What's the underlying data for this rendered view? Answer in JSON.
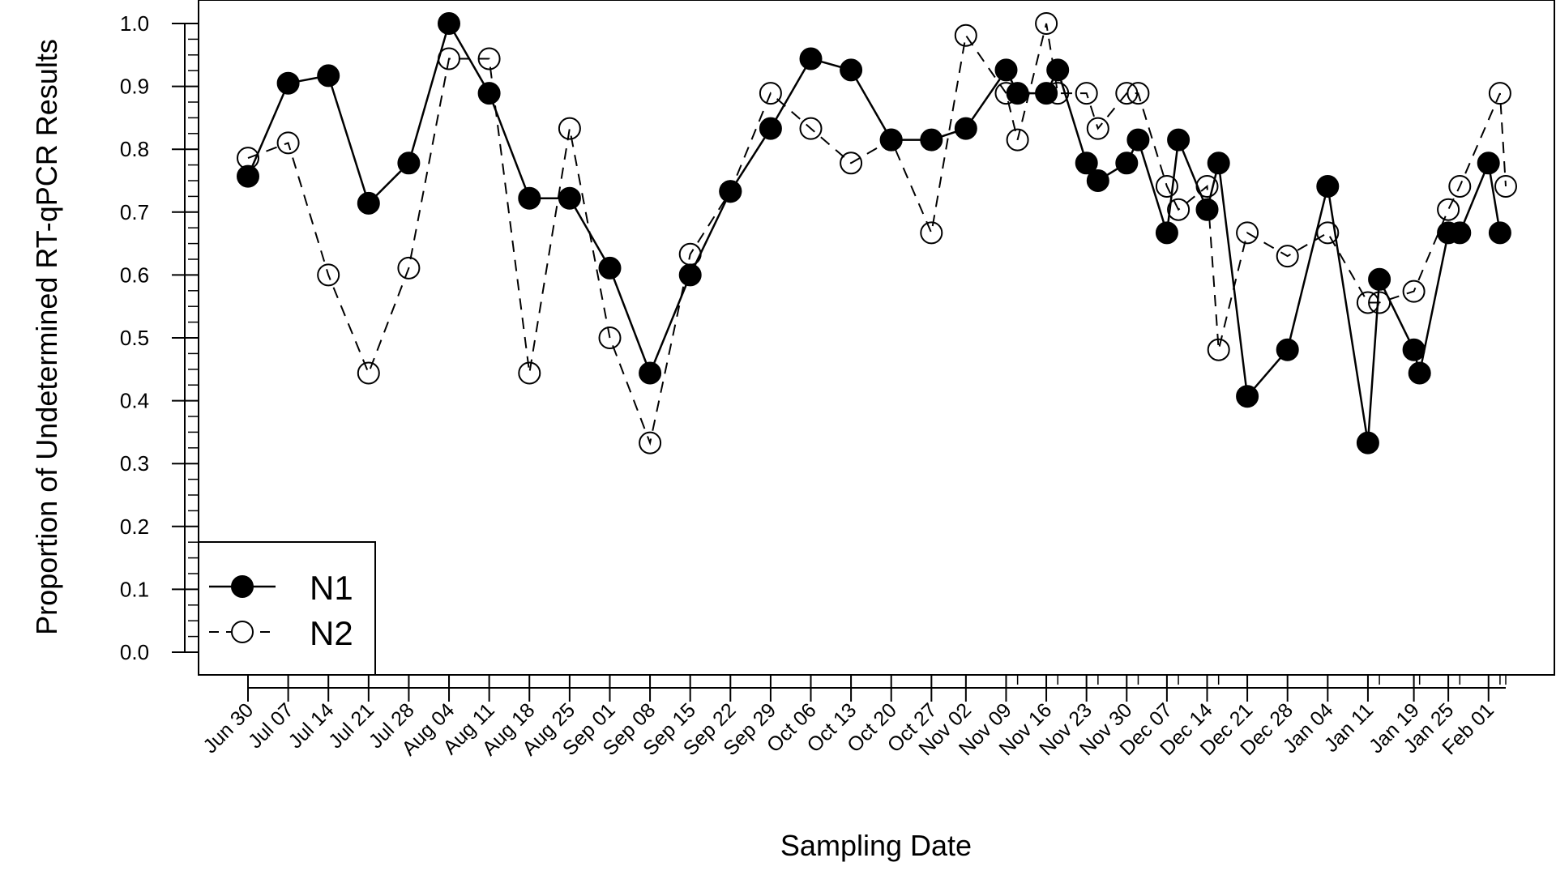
{
  "chart_data": {
    "type": "line",
    "title": "",
    "xlabel": "Sampling Date",
    "ylabel": "Proportion of Undetermined RT-qPCR Results",
    "ylim": [
      0.0,
      1.0
    ],
    "y_ticks": [
      "0.0",
      "0.1",
      "0.2",
      "0.3",
      "0.4",
      "0.5",
      "0.6",
      "0.7",
      "0.8",
      "0.9",
      "1.0"
    ],
    "x_ticks": [
      "Jun 30",
      "Jul 07",
      "Jul 14",
      "Jul 21",
      "Jul 28",
      "Aug 04",
      "Aug 11",
      "Aug 18",
      "Aug 25",
      "Sep 01",
      "Sep 08",
      "Sep 15",
      "Sep 22",
      "Sep 29",
      "Oct 06",
      "Oct 13",
      "Oct 20",
      "Oct 27",
      "Nov 02",
      "Nov 09",
      "Nov 16",
      "Nov 23",
      "Nov 30",
      "Dec 07",
      "Dec 14",
      "Dec 21",
      "Dec 28",
      "Jan 04",
      "Jan 11",
      "Jan 19",
      "Jan 25",
      "Feb 01"
    ],
    "x_axis_type": "date",
    "grid": false,
    "legend_position": "bottom-left",
    "series": [
      {
        "name": "N1",
        "line_style": "solid",
        "marker": "filled-circle",
        "points": [
          [
            "2020-06-30",
            0.757
          ],
          [
            "2020-07-07",
            0.905
          ],
          [
            "2020-07-14",
            0.917
          ],
          [
            "2020-07-21",
            0.714
          ],
          [
            "2020-07-28",
            0.778
          ],
          [
            "2020-08-04",
            1.0
          ],
          [
            "2020-08-11",
            0.889
          ],
          [
            "2020-08-18",
            0.722
          ],
          [
            "2020-08-25",
            0.722
          ],
          [
            "2020-09-01",
            0.611
          ],
          [
            "2020-09-08",
            0.444
          ],
          [
            "2020-09-15",
            0.6
          ],
          [
            "2020-09-22",
            0.733
          ],
          [
            "2020-09-29",
            0.833
          ],
          [
            "2020-10-06",
            0.944
          ],
          [
            "2020-10-13",
            0.926
          ],
          [
            "2020-10-20",
            0.815
          ],
          [
            "2020-10-27",
            0.815
          ],
          [
            "2020-11-02",
            0.833
          ],
          [
            "2020-11-09",
            0.926
          ],
          [
            "2020-11-11",
            0.889
          ],
          [
            "2020-11-16",
            0.889
          ],
          [
            "2020-11-18",
            0.926
          ],
          [
            "2020-11-23",
            0.778
          ],
          [
            "2020-11-25",
            0.75
          ],
          [
            "2020-11-30",
            0.778
          ],
          [
            "2020-12-02",
            0.815
          ],
          [
            "2020-12-07",
            0.667
          ],
          [
            "2020-12-09",
            0.815
          ],
          [
            "2020-12-14",
            0.704
          ],
          [
            "2020-12-16",
            0.778
          ],
          [
            "2020-12-21",
            0.407
          ],
          [
            "2020-12-28",
            0.481
          ],
          [
            "2021-01-04",
            0.741
          ],
          [
            "2021-01-11",
            0.333
          ],
          [
            "2021-01-13",
            0.593
          ],
          [
            "2021-01-19",
            0.481
          ],
          [
            "2021-01-20",
            0.444
          ],
          [
            "2021-01-25",
            0.667
          ],
          [
            "2021-01-27",
            0.667
          ],
          [
            "2021-02-01",
            0.778
          ],
          [
            "2021-02-03",
            0.667
          ]
        ]
      },
      {
        "name": "N2",
        "line_style": "dashed",
        "marker": "open-circle",
        "points": [
          [
            "2020-06-30",
            0.786
          ],
          [
            "2020-07-07",
            0.81
          ],
          [
            "2020-07-14",
            0.6
          ],
          [
            "2020-07-21",
            0.444
          ],
          [
            "2020-07-28",
            0.611
          ],
          [
            "2020-08-04",
            0.944
          ],
          [
            "2020-08-11",
            0.944
          ],
          [
            "2020-08-18",
            0.444
          ],
          [
            "2020-08-25",
            0.833
          ],
          [
            "2020-09-01",
            0.5
          ],
          [
            "2020-09-08",
            0.333
          ],
          [
            "2020-09-15",
            0.633
          ],
          [
            "2020-09-22",
            0.733
          ],
          [
            "2020-09-29",
            0.889
          ],
          [
            "2020-10-06",
            0.833
          ],
          [
            "2020-10-13",
            0.778
          ],
          [
            "2020-10-20",
            0.815
          ],
          [
            "2020-10-27",
            0.667
          ],
          [
            "2020-11-02",
            0.981
          ],
          [
            "2020-11-09",
            0.889
          ],
          [
            "2020-11-11",
            0.815
          ],
          [
            "2020-11-16",
            1.0
          ],
          [
            "2020-11-18",
            0.889
          ],
          [
            "2020-11-23",
            0.889
          ],
          [
            "2020-11-25",
            0.833
          ],
          [
            "2020-11-30",
            0.889
          ],
          [
            "2020-12-02",
            0.889
          ],
          [
            "2020-12-07",
            0.741
          ],
          [
            "2020-12-09",
            0.704
          ],
          [
            "2020-12-14",
            0.741
          ],
          [
            "2020-12-16",
            0.481
          ],
          [
            "2020-12-21",
            0.667
          ],
          [
            "2020-12-28",
            0.63
          ],
          [
            "2021-01-04",
            0.667
          ],
          [
            "2021-01-11",
            0.556
          ],
          [
            "2021-01-13",
            0.556
          ],
          [
            "2021-01-19",
            0.574
          ],
          [
            "2021-01-25",
            0.704
          ],
          [
            "2021-01-27",
            0.741
          ],
          [
            "2021-02-03",
            0.889
          ],
          [
            "2021-02-04",
            0.741
          ]
        ]
      }
    ]
  }
}
